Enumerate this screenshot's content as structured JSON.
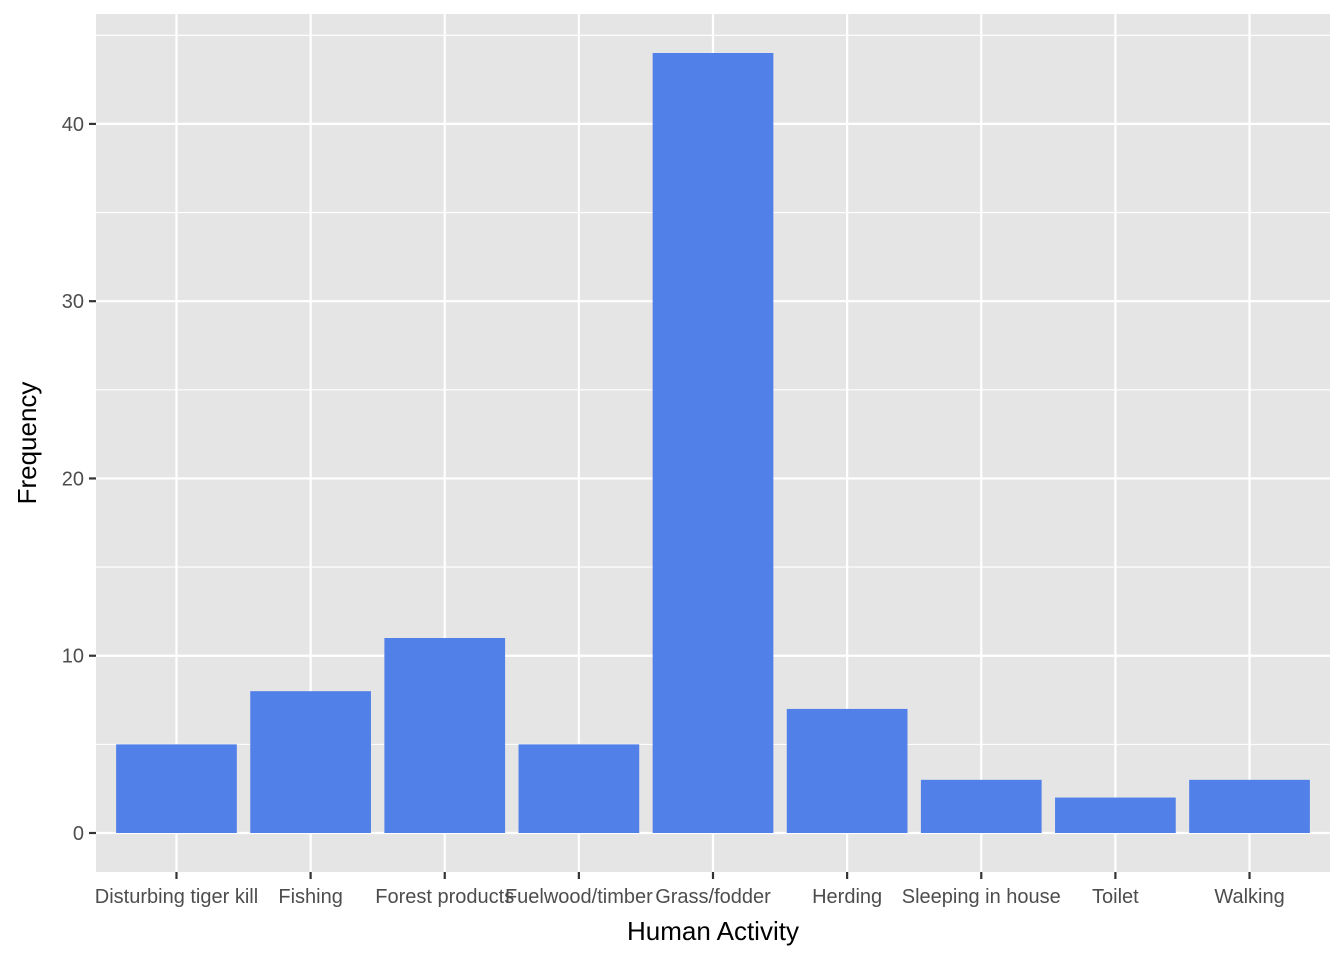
{
  "chart_data": {
    "type": "bar",
    "title": "",
    "xlabel": "Human Activity",
    "ylabel": "Frequency",
    "categories": [
      "Disturbing tiger kill",
      "Fishing",
      "Forest products",
      "Fuelwood/timber",
      "Grass/fodder",
      "Herding",
      "Sleeping in house",
      "Toilet",
      "Walking"
    ],
    "values": [
      5,
      8,
      11,
      5,
      44,
      7,
      3,
      2,
      3
    ],
    "ylim": [
      -2.2,
      46.2
    ],
    "yticks": [
      0,
      10,
      20,
      30,
      40
    ],
    "grid": true,
    "legend": "none",
    "bar_color": "#5280e9",
    "panel_color": "#e5e5e5",
    "grid_color": "#ffffff"
  }
}
